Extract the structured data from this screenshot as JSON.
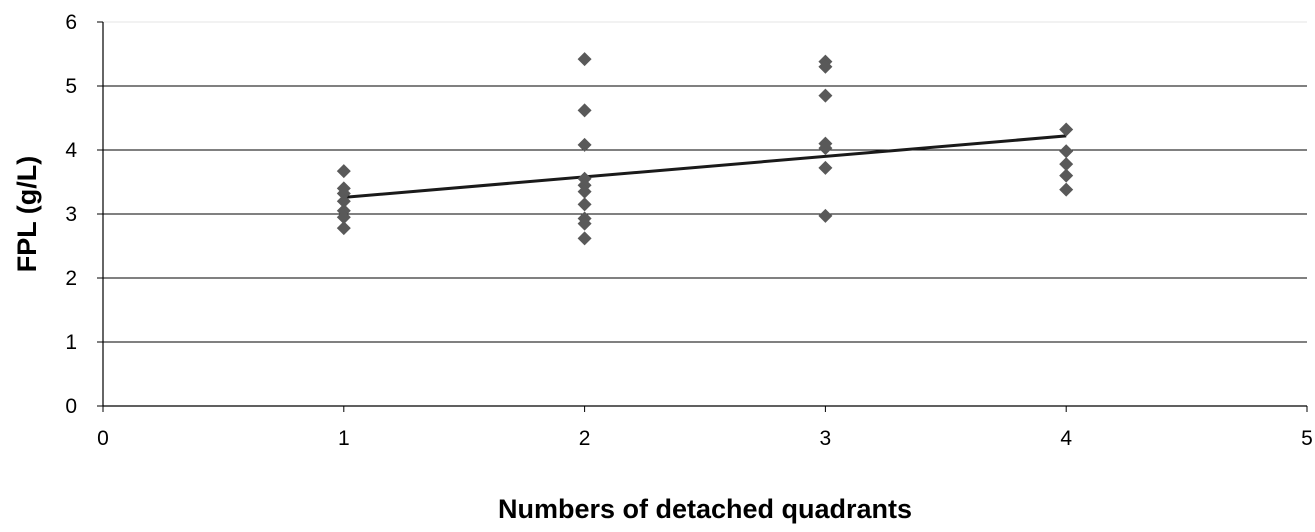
{
  "chart_data": {
    "type": "scatter",
    "title": "",
    "xlabel": "Numbers of detached quadrants",
    "ylabel": "FPL (g/L)",
    "xlim": [
      0,
      5
    ],
    "ylim": [
      0,
      6
    ],
    "x_ticks": [
      "0",
      "1",
      "2",
      "3",
      "4",
      "5"
    ],
    "y_ticks": [
      "0",
      "1",
      "2",
      "3",
      "4",
      "5",
      "6"
    ],
    "grid": "horizontal",
    "legend": "none",
    "colors": {
      "points": "#595959",
      "trend": "#1a1a1a",
      "grid": "#000000"
    },
    "series": [
      {
        "type": "scatter",
        "points": [
          {
            "x": 1,
            "y": 3.67
          },
          {
            "x": 1,
            "y": 3.4
          },
          {
            "x": 1,
            "y": 3.32
          },
          {
            "x": 1,
            "y": 3.2
          },
          {
            "x": 1,
            "y": 3.05
          },
          {
            "x": 1,
            "y": 2.95
          },
          {
            "x": 1,
            "y": 2.78
          },
          {
            "x": 2,
            "y": 5.42
          },
          {
            "x": 2,
            "y": 4.62
          },
          {
            "x": 2,
            "y": 4.08
          },
          {
            "x": 2,
            "y": 3.55
          },
          {
            "x": 2,
            "y": 3.45
          },
          {
            "x": 2,
            "y": 3.35
          },
          {
            "x": 2,
            "y": 3.15
          },
          {
            "x": 2,
            "y": 2.93
          },
          {
            "x": 2,
            "y": 2.85
          },
          {
            "x": 2,
            "y": 2.62
          },
          {
            "x": 3,
            "y": 5.38
          },
          {
            "x": 3,
            "y": 5.3
          },
          {
            "x": 3,
            "y": 4.85
          },
          {
            "x": 3,
            "y": 4.1
          },
          {
            "x": 3,
            "y": 4.03
          },
          {
            "x": 3,
            "y": 3.72
          },
          {
            "x": 3,
            "y": 2.97
          },
          {
            "x": 4,
            "y": 4.32
          },
          {
            "x": 4,
            "y": 3.98
          },
          {
            "x": 4,
            "y": 3.78
          },
          {
            "x": 4,
            "y": 3.6
          },
          {
            "x": 4,
            "y": 3.38
          }
        ]
      },
      {
        "type": "line",
        "points": [
          {
            "x": 1,
            "y": 3.26
          },
          {
            "x": 4,
            "y": 4.22
          }
        ]
      }
    ]
  }
}
